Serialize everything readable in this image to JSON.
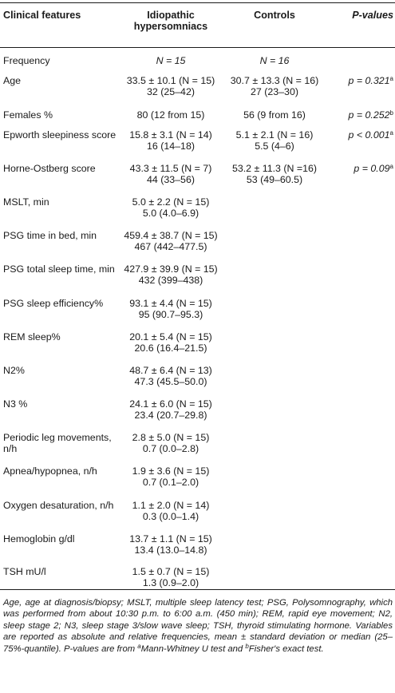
{
  "headers": {
    "col1": "Clinical features",
    "col2": "Idiopathic hypersomniacs",
    "col3": "Controls",
    "col4": "P-values"
  },
  "rows": [
    {
      "label": "Frequency",
      "ih": [
        "N = 15"
      ],
      "ctrl": [
        "N = 16"
      ],
      "p": "",
      "p_sup": ""
    },
    {
      "label": "Age",
      "ih": [
        "33.5 ± 10.1 (N = 15)",
        "32 (25–42)"
      ],
      "ctrl": [
        "30.7 ± 13.3 (N = 16)",
        "27 (23–30)"
      ],
      "p": "p = 0.321",
      "p_sup": "a"
    },
    {
      "label": "Females %",
      "ih": [
        "80 (12 from 15)"
      ],
      "ctrl": [
        "56 (9 from 16)"
      ],
      "p": "p = 0.252",
      "p_sup": "b"
    },
    {
      "label": "Epworth sleepiness score",
      "ih": [
        "15.8 ± 3.1 (N = 14)",
        "16 (14–18)"
      ],
      "ctrl": [
        "5.1 ± 2.1 (N = 16)",
        "5.5 (4–6)"
      ],
      "p": "p < 0.001",
      "p_sup": "a"
    },
    {
      "label": "Horne-Ostberg score",
      "ih": [
        "43.3 ± 11.5 (N = 7)",
        "44 (33–56)"
      ],
      "ctrl": [
        "53.2 ± 11.3 (N =16)",
        "53 (49–60.5)"
      ],
      "p": "p = 0.09",
      "p_sup": "a"
    },
    {
      "label": "MSLT, min",
      "ih": [
        "5.0 ± 2.2 (N = 15)",
        "5.0 (4.0–6.9)"
      ],
      "ctrl": [],
      "p": "",
      "p_sup": ""
    },
    {
      "label": "PSG time in bed, min",
      "ih": [
        "459.4 ± 38.7 (N = 15)",
        "467 (442–477.5)"
      ],
      "ctrl": [],
      "p": "",
      "p_sup": ""
    },
    {
      "label": "PSG total sleep time, min",
      "ih": [
        "427.9 ± 39.9 (N = 15)",
        "432 (399–438)"
      ],
      "ctrl": [],
      "p": "",
      "p_sup": ""
    },
    {
      "label": "PSG sleep efficiency%",
      "ih": [
        "93.1 ± 4.4 (N = 15)",
        "95 (90.7–95.3)"
      ],
      "ctrl": [],
      "p": "",
      "p_sup": ""
    },
    {
      "label": "REM sleep%",
      "ih": [
        "20.1 ± 5.4 (N = 15)",
        "20.6 (16.4–21.5)"
      ],
      "ctrl": [],
      "p": "",
      "p_sup": ""
    },
    {
      "label": "N2%",
      "ih": [
        "48.7 ± 6.4 (N = 13)",
        "47.3 (45.5–50.0)"
      ],
      "ctrl": [],
      "p": "",
      "p_sup": ""
    },
    {
      "label": "N3 %",
      "ih": [
        "24.1 ± 6.0 (N = 15)",
        "23.4 (20.7–29.8)"
      ],
      "ctrl": [],
      "p": "",
      "p_sup": ""
    },
    {
      "label": "Periodic leg movements, n/h",
      "ih": [
        "2.8 ± 5.0 (N = 15)",
        "0.7 (0.0–2.8)"
      ],
      "ctrl": [],
      "p": "",
      "p_sup": ""
    },
    {
      "label": "Apnea/hypopnea, n/h",
      "ih": [
        "1.9 ± 3.6 (N = 15)",
        "0.7 (0.1–2.0)"
      ],
      "ctrl": [],
      "p": "",
      "p_sup": ""
    },
    {
      "label": "Oxygen desaturation, n/h",
      "ih": [
        "1.1 ± 2.0 (N = 14)",
        "0.3 (0.0–1.4)"
      ],
      "ctrl": [],
      "p": "",
      "p_sup": ""
    },
    {
      "label": "Hemoglobin g/dl",
      "ih": [
        "13.7 ± 1.1 (N = 15)",
        "13.4 (13.0–14.8)"
      ],
      "ctrl": [],
      "p": "",
      "p_sup": ""
    },
    {
      "label": "TSH mU/l",
      "ih": [
        "1.5 ± 0.7 (N = 15)",
        "1.3 (0.9–2.0)"
      ],
      "ctrl": [],
      "p": "",
      "p_sup": ""
    }
  ],
  "footnote": {
    "text": "Age, age at diagnosis/biopsy; MSLT, multiple sleep latency test; PSG, Polysomnography, which was performed from about 10:30 p.m. to 6:00 a.m. (450 min); REM, rapid eye movement; N2, sleep stage 2; N3, sleep stage 3/slow wave sleep; TSH, thyroid stimulating hormone. Variables are reported as absolute and relative frequencies, mean ± standard deviation or median (25–75%-quantile). P-values are from ",
    "sup_a": "a",
    "text_a": "Mann-Whitney U test and ",
    "sup_b": "b",
    "text_b": "Fisher's exact test."
  }
}
